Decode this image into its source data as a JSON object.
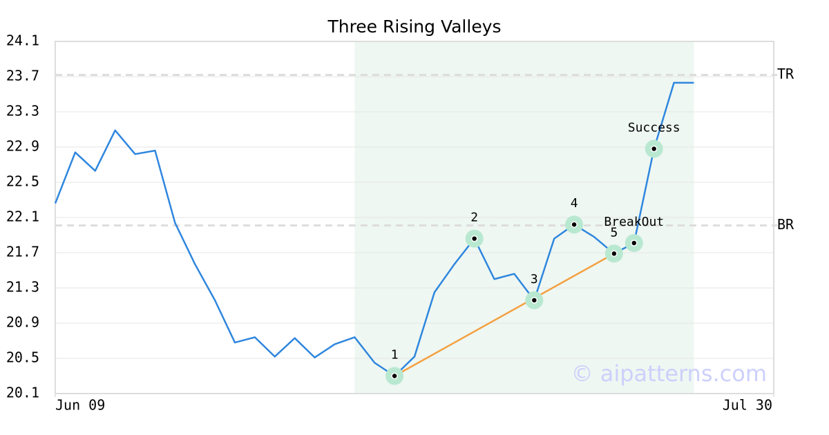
{
  "chart_data": {
    "type": "line",
    "title": "Three Rising Valleys",
    "watermark": "© aipatterns.com",
    "x": [
      0,
      1,
      2,
      3,
      4,
      5,
      6,
      7,
      8,
      9,
      10,
      11,
      12,
      13,
      14,
      15,
      16,
      17,
      18,
      19,
      20,
      21,
      22,
      23,
      24,
      25,
      26,
      27,
      28,
      29,
      30,
      31,
      32
    ],
    "series": [
      {
        "color": "#2e86de",
        "values": [
          22.26,
          22.84,
          22.63,
          23.09,
          22.82,
          22.86,
          22.04,
          21.57,
          21.16,
          20.68,
          20.74,
          20.52,
          20.73,
          20.51,
          20.66,
          20.74,
          20.45,
          20.3,
          20.52,
          21.25,
          21.57,
          21.86,
          21.4,
          21.46,
          21.16,
          21.86,
          22.02,
          21.88,
          21.69,
          21.81,
          22.88,
          23.63,
          23.63
        ]
      }
    ],
    "xlim": [
      0,
      36
    ],
    "xticks": [
      {
        "value": 0,
        "label": "Jun 09"
      },
      {
        "value": 36,
        "label": "Jul 30"
      }
    ],
    "ylim": [
      20.1,
      24.1
    ],
    "yticks": [
      20.1,
      20.5,
      20.9,
      21.3,
      21.7,
      22.1,
      22.5,
      22.9,
      23.3,
      23.7,
      24.1
    ],
    "grid": true,
    "shade_x": [
      15,
      32
    ],
    "shade_color": "#eef7f2",
    "levels": [
      {
        "label": "TR",
        "value": 23.72
      },
      {
        "label": "BR",
        "value": 22.01
      }
    ],
    "trendline": {
      "x": [
        17,
        28
      ],
      "color": "#f4a040"
    },
    "annotations": [
      {
        "x": 17,
        "label": "1"
      },
      {
        "x": 21,
        "label": "2"
      },
      {
        "x": 24,
        "label": "3"
      },
      {
        "x": 26,
        "label": "4"
      },
      {
        "x": 28,
        "label": "5"
      },
      {
        "x": 29,
        "label": "BreakOut"
      },
      {
        "x": 30,
        "label": "Success"
      }
    ]
  }
}
